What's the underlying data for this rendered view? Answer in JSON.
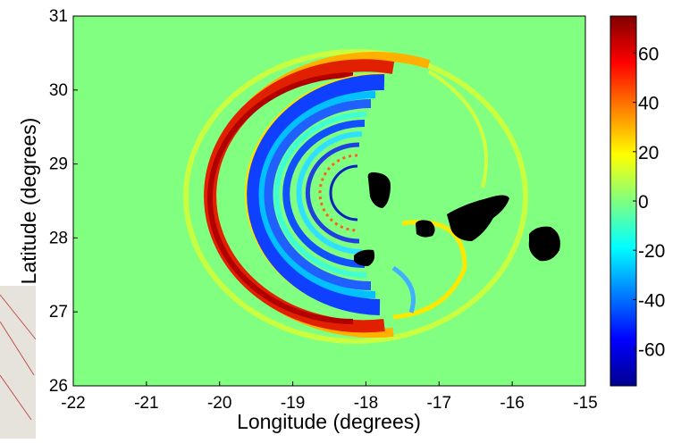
{
  "chart_data": {
    "type": "heatmap",
    "xlabel": "Longitude (degrees)",
    "ylabel": "Latitude (degrees)",
    "xlim": [
      -22,
      -15
    ],
    "xticks": [
      -22,
      -21,
      -20,
      -19,
      -18,
      -17,
      -16,
      -15
    ],
    "ylim": [
      26,
      31
    ],
    "yticks": [
      26,
      27,
      28,
      29,
      30,
      31
    ],
    "colormap": "jet",
    "colorbar": {
      "lim": [
        -75,
        75
      ],
      "ticks": [
        60,
        40,
        20,
        0,
        -20,
        -40,
        -60
      ]
    }
  }
}
